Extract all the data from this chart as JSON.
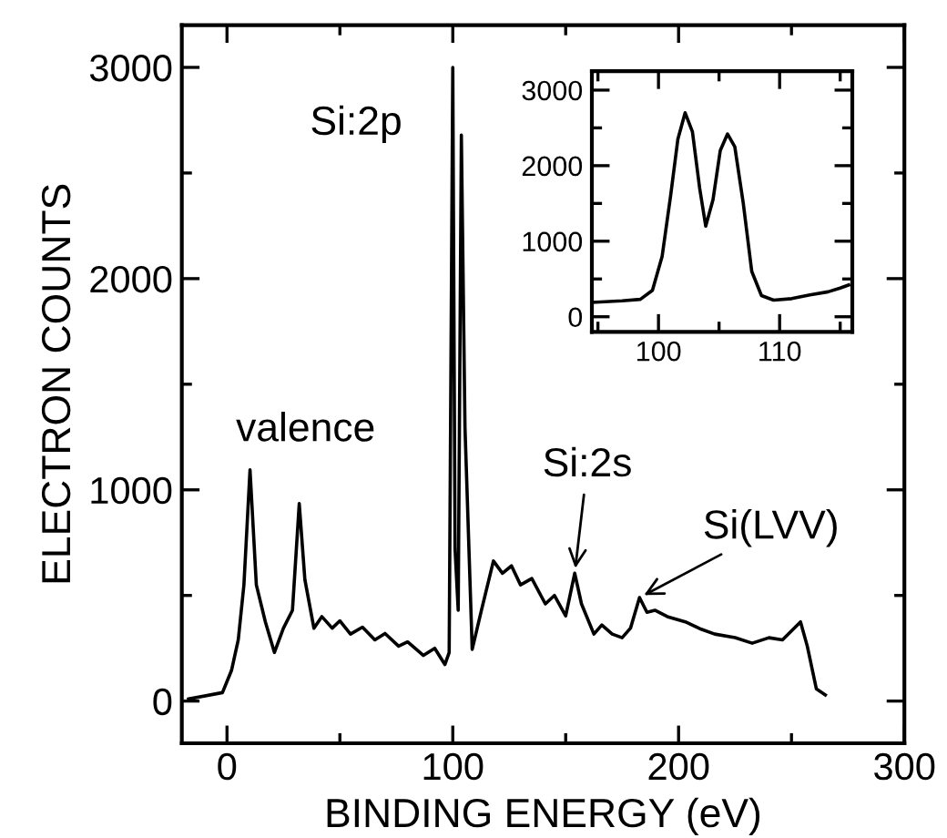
{
  "chart_data": [
    {
      "type": "line",
      "xlabel": "BINDING ENERGY (eV)",
      "ylabel": "ELECTRON COUNTS",
      "xlim": [
        -20,
        300
      ],
      "ylim": [
        -200,
        3200
      ],
      "xticks": [
        0,
        100,
        200,
        300
      ],
      "yticks": [
        0,
        1000,
        2000,
        3000
      ],
      "grid": false,
      "legend": false,
      "marker": "none",
      "line_style": "solid",
      "series": [
        {
          "color": "#000000",
          "x": [
            -17,
            -2,
            2,
            5,
            7.5,
            10.2,
            13,
            17,
            21,
            25,
            29,
            32,
            34.5,
            38.5,
            42,
            46.6,
            50,
            54.7,
            60,
            65.5,
            70,
            76,
            80,
            87,
            92,
            96.5,
            98.4,
            100,
            101,
            102.4,
            103.8,
            105.4,
            108.6,
            112.7,
            118,
            122,
            126,
            130,
            135,
            141,
            145,
            150,
            154,
            157,
            162.5,
            166,
            170.6,
            175,
            178.7,
            182.7,
            186,
            189.5,
            195,
            203,
            210,
            216,
            225,
            232.6,
            240,
            246,
            254,
            257,
            261,
            265
          ],
          "values": [
            10,
            40,
            145,
            290,
            550,
            1095,
            550,
            375,
            230,
            345,
            430,
            935,
            575,
            345,
            400,
            345,
            380,
            317,
            350,
            290,
            320,
            260,
            280,
            216,
            250,
            173,
            230,
            3000,
            720,
            430,
            2680,
            1297,
            245,
            430,
            663,
            605,
            640,
            550,
            580,
            460,
            500,
            403,
            605,
            460,
            317,
            360,
            317,
            300,
            345,
            490,
            420,
            430,
            400,
            375,
            340,
            317,
            300,
            274,
            300,
            290,
            375,
            260,
            58,
            29
          ]
        }
      ],
      "annotations": [
        {
          "text": "valence",
          "x": 10.2,
          "y": 1095
        },
        {
          "text": "Si:2p",
          "x": 100,
          "y": 3000
        },
        {
          "text": "Si:2s",
          "x": 154,
          "y": 605
        },
        {
          "text": "Si(LVV)",
          "x": 182.7,
          "y": 490
        }
      ]
    },
    {
      "type": "line",
      "xlim": [
        94.5,
        116
      ],
      "ylim": [
        -200,
        3250
      ],
      "xticks": [
        100,
        110
      ],
      "yticks": [
        0,
        1000,
        2000,
        3000
      ],
      "grid": false,
      "legend": false,
      "marker": "none",
      "line_style": "solid",
      "series": [
        {
          "color": "#000000",
          "x": [
            94.5,
            97,
            98.5,
            99.5,
            100.3,
            101,
            101.6,
            102.2,
            102.8,
            103.4,
            103.9,
            104.5,
            105.1,
            105.7,
            106.3,
            107,
            107.7,
            108.5,
            109.5,
            111,
            112.5,
            114,
            115,
            115.7
          ],
          "values": [
            190,
            210,
            230,
            350,
            800,
            1600,
            2350,
            2700,
            2450,
            1700,
            1200,
            1550,
            2200,
            2420,
            2250,
            1500,
            600,
            280,
            220,
            240,
            290,
            330,
            380,
            420
          ]
        }
      ]
    }
  ]
}
